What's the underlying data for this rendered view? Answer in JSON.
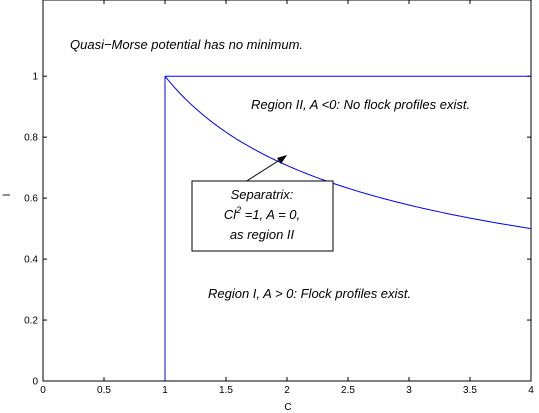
{
  "chart_data": {
    "type": "line",
    "xlabel": "C",
    "ylabel": "l",
    "xlim": [
      0,
      4
    ],
    "ylim": [
      0,
      1.25
    ],
    "xticks": [
      "0",
      "0.5",
      "1",
      "1.5",
      "2",
      "2.5",
      "3",
      "3.5",
      "4"
    ],
    "xtick_values": [
      0,
      0.5,
      1,
      1.5,
      2,
      2.5,
      3,
      3.5,
      4
    ],
    "yticks": [
      "0",
      "0.2",
      "0.4",
      "0.6",
      "0.8",
      "1"
    ],
    "ytick_values": [
      0,
      0.2,
      0.4,
      0.6,
      0.8,
      1
    ],
    "grid": false,
    "line_color": "#0000ff",
    "series": [
      {
        "kind": "vertical",
        "x": [
          1,
          1
        ],
        "y": [
          0,
          1
        ]
      },
      {
        "kind": "horizontal",
        "x": [
          1,
          4
        ],
        "y": [
          1,
          1
        ]
      },
      {
        "kind": "separatrix",
        "x": [
          1,
          1.25,
          1.5,
          1.75,
          2,
          2.25,
          2.5,
          2.75,
          3,
          3.25,
          3.5,
          3.75,
          4
        ],
        "y": [
          1,
          0.8944,
          0.8165,
          0.7559,
          0.7071,
          0.6667,
          0.6325,
          0.603,
          0.5774,
          0.5547,
          0.5345,
          0.5164,
          0.5
        ]
      }
    ],
    "annotations": {
      "top": "Quasi−Morse potential has no minimum.",
      "region2": "Region II, A <0: No flock profiles exist.",
      "region1": "Region I, A > 0: Flock profiles exist.",
      "box_line1": "Separatrix:",
      "box_line2_prefix": "Cl",
      "box_line2_sup": "2",
      "box_line2_suffix": " =1, A = 0,",
      "box_line3": "as region II"
    }
  }
}
